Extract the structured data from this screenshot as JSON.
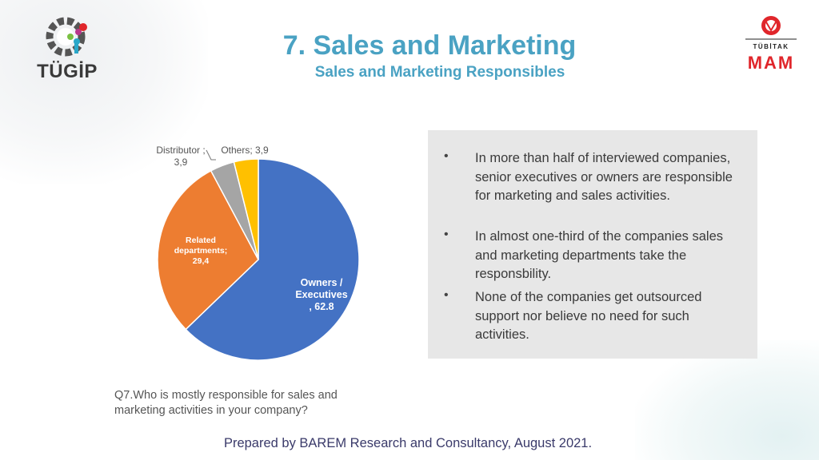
{
  "header": {
    "title": "7. Sales and Marketing",
    "subtitle": "Sales and Marketing Responsibles",
    "logo_left_text": "TÜGİP",
    "logo_right_org": "TÜBİTAK",
    "logo_right_unit": "MAM"
  },
  "colors": {
    "title": "#4aa2c3",
    "owners": "#4472c4",
    "related": "#ed7d31",
    "distributor": "#a5a5a5",
    "others": "#ffc000",
    "panel": "#e7e7e7"
  },
  "chart_data": {
    "type": "pie",
    "series": [
      {
        "slices": [
          {
            "label_lines": [
              "Owners /",
              "Executives",
              ", 62.8"
            ],
            "value": 62.8
          },
          {
            "label_lines": [
              "Related",
              "departments;",
              "29,4"
            ],
            "value": 29.4
          },
          {
            "label_lines": [
              "Distributor ;",
              "3,9"
            ],
            "value": 3.9
          },
          {
            "label_lines": [
              "Others; 3,9"
            ],
            "value": 3.9
          }
        ]
      }
    ]
  },
  "bullets": [
    {
      "marker": "•",
      "text": "In more than half of interviewed companies, senior executives or owners are responsible for marketing and sales activities."
    },
    {
      "marker": "•",
      "text": "In almost one-third of the companies sales and marketing departments take the responsbility."
    },
    {
      "marker": "•",
      "text": "None of the companies get outsourced support nor believe no need for such activities."
    }
  ],
  "question": "Q7.Who is mostly responsible for sales and marketing activities in your company?",
  "footer": "Prepared by BAREM Research and Consultancy, August 2021."
}
